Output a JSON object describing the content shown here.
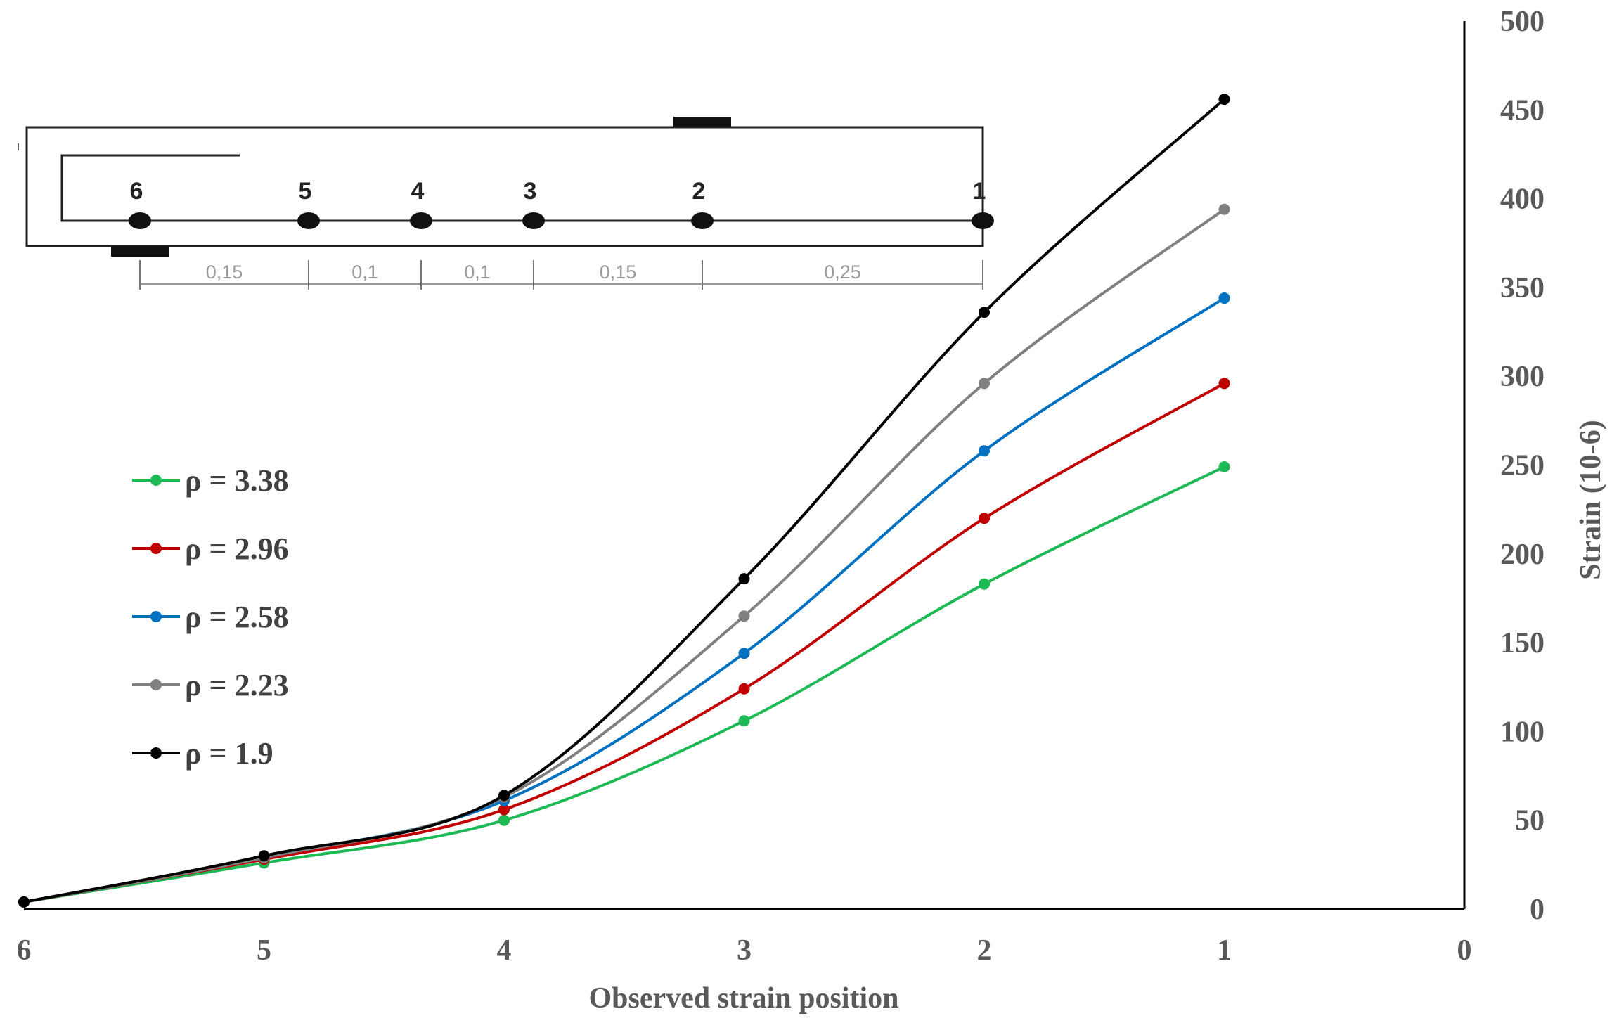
{
  "chart_data": {
    "type": "line",
    "title": "",
    "xlabel": "Observed strain position",
    "ylabel": "Strain (10-6)",
    "x_reversed": true,
    "xlim": [
      0,
      6
    ],
    "ylim": [
      0,
      500
    ],
    "x_ticks": [
      6,
      5,
      4,
      3,
      2,
      1,
      0
    ],
    "y_ticks": [
      0,
      50,
      100,
      150,
      200,
      250,
      300,
      350,
      400,
      450,
      500
    ],
    "grid": false,
    "legend_position": "left",
    "x": [
      6,
      5,
      4,
      3,
      2,
      1
    ],
    "series": [
      {
        "name": "ρ = 3.38",
        "color": "#1db954",
        "values": [
          4,
          26,
          50,
          106,
          183,
          249
        ]
      },
      {
        "name": "ρ = 2.96",
        "color": "#c00000",
        "values": [
          4,
          28,
          56,
          124,
          220,
          296
        ]
      },
      {
        "name": "ρ = 2.58",
        "color": "#0070c0",
        "values": [
          4,
          29,
          61,
          144,
          258,
          344
        ]
      },
      {
        "name": "ρ = 2.23",
        "color": "#808080",
        "values": [
          4,
          29,
          63,
          165,
          296,
          394
        ]
      },
      {
        "name": "ρ = 1.9",
        "color": "#000000",
        "values": [
          4,
          30,
          64,
          186,
          336,
          456
        ]
      }
    ]
  },
  "diagram": {
    "nodes": [
      {
        "label": "6",
        "position": 6
      },
      {
        "label": "5",
        "position": 5
      },
      {
        "label": "4",
        "position": 4
      },
      {
        "label": "3",
        "position": 3
      },
      {
        "label": "2",
        "position": 2
      },
      {
        "label": "1",
        "position": 1
      }
    ],
    "spacings": [
      "0,15",
      "0,1",
      "0,1",
      "0,15",
      "0,25"
    ]
  }
}
